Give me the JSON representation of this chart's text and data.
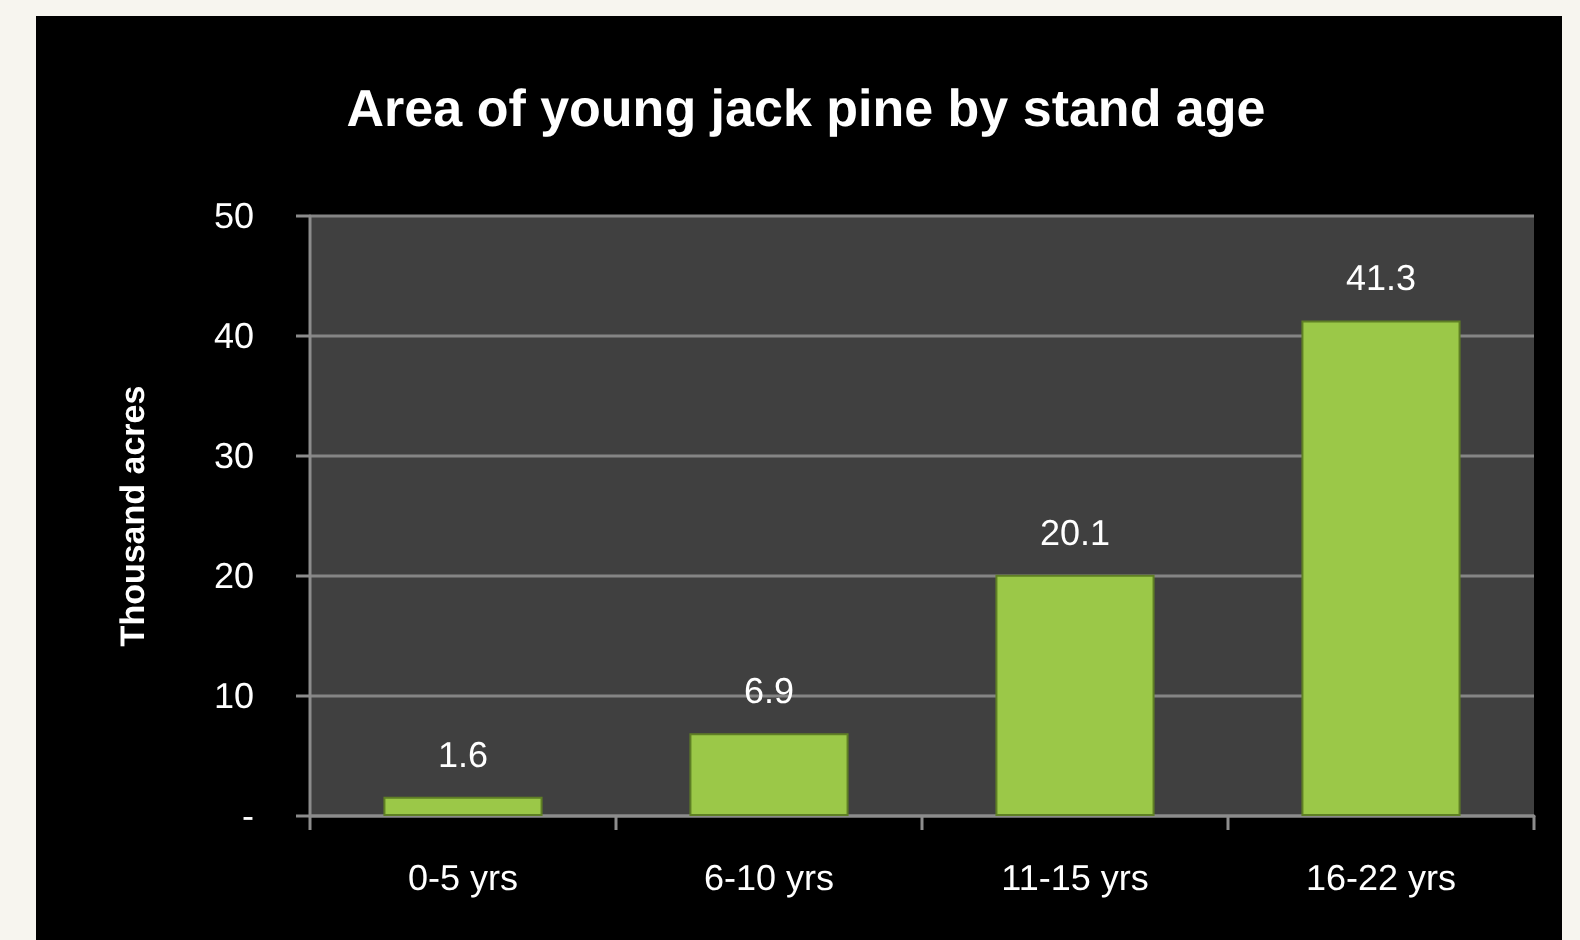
{
  "chart_data": {
    "type": "bar",
    "title": "Area of young jack pine by stand age",
    "ylabel": "Thousand acres",
    "categories": [
      "0-5 yrs",
      "6-10 yrs",
      "11-15 yrs",
      "16-22 yrs"
    ],
    "values": [
      1.6,
      6.9,
      20.1,
      41.3
    ],
    "color": "#9bc848",
    "ylim": [
      0,
      50
    ],
    "yticks": [
      {
        "value": 0,
        "label": "-"
      },
      10,
      20,
      30,
      40,
      50
    ],
    "grid": "y",
    "data_labels": true
  }
}
